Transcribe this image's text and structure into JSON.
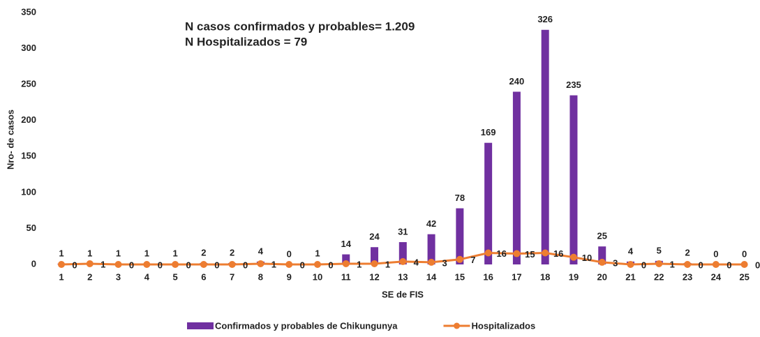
{
  "chart_data": {
    "type": "bar_line",
    "annotations": [
      "N casos confirmados y probables= 1.209",
      "N Hospitalizados = 79"
    ],
    "x_label": "SE de FIS",
    "y_label": "Nro- de casos",
    "categories": [
      "1",
      "2",
      "3",
      "4",
      "5",
      "6",
      "7",
      "8",
      "9",
      "10",
      "11",
      "12",
      "13",
      "14",
      "15",
      "16",
      "17",
      "18",
      "19",
      "20",
      "21",
      "22",
      "23",
      "24",
      "25"
    ],
    "series": [
      {
        "name": "Confirmados y probables de Chikungunya",
        "type": "bar",
        "color": "#7030a0",
        "values": [
          1,
          1,
          1,
          1,
          1,
          2,
          2,
          4,
          0,
          1,
          14,
          24,
          31,
          42,
          78,
          169,
          240,
          326,
          235,
          25,
          4,
          5,
          2,
          0,
          0
        ]
      },
      {
        "name": "Hospitalizados",
        "type": "line",
        "color": "#ed7d31",
        "values": [
          0,
          1,
          0,
          0,
          0,
          0,
          0,
          1,
          0,
          0,
          1,
          1,
          4,
          3,
          7,
          16,
          15,
          16,
          10,
          3,
          0,
          1,
          0,
          0,
          0
        ]
      }
    ],
    "ylim": [
      0,
      350
    ],
    "yticks": [
      0,
      50,
      100,
      150,
      200,
      250,
      300,
      350
    ],
    "grid": false
  }
}
